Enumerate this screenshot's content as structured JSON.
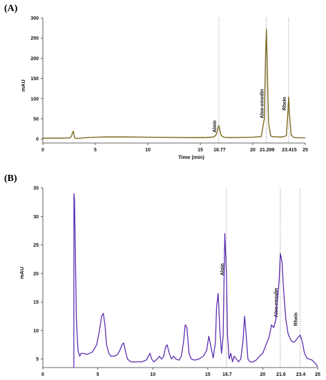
{
  "chart_data": [
    {
      "type": "line",
      "panel_label": "(A)",
      "xlabel": "Time (min)",
      "ylabel": "mAU",
      "xlim": [
        0,
        25
      ],
      "ylim": [
        -10,
        300
      ],
      "x_ticks": [
        0,
        5,
        10,
        15,
        20,
        25
      ],
      "y_ticks": [
        0,
        50,
        100,
        150,
        200,
        250,
        300
      ],
      "line_color": "#7a6a1e",
      "grid": false,
      "series": [
        {
          "x": [
            0,
            2.0,
            2.2,
            2.4,
            2.6,
            2.75,
            2.85,
            2.92,
            2.98,
            3.05,
            3.15,
            3.3,
            3.6,
            4.0,
            5.0,
            6.0,
            8.0,
            10.0,
            12.0,
            14.0,
            15.5,
            16.3,
            16.55,
            16.68,
            16.77,
            16.86,
            17.0,
            17.3,
            18.0,
            19.0,
            20.0,
            20.8,
            21.1,
            21.22,
            21.299,
            21.38,
            21.5,
            21.7,
            21.9,
            22.1,
            22.4,
            22.8,
            23.2,
            23.35,
            23.415,
            23.5,
            23.65,
            23.9,
            24.3,
            25.0
          ],
          "y": [
            2,
            2,
            2.5,
            2.5,
            3,
            8,
            18,
            19,
            9,
            2,
            1,
            1.5,
            2,
            3,
            4.5,
            5,
            5,
            4.5,
            4,
            3.5,
            3.5,
            5,
            12,
            28,
            33,
            22,
            8,
            4,
            3.5,
            4,
            4.5,
            6,
            50,
            210,
            272,
            180,
            40,
            8,
            5,
            6,
            5,
            5,
            8,
            70,
            104,
            60,
            10,
            4,
            3,
            3
          ]
        }
      ],
      "annotations": [
        {
          "label": "Aloin",
          "x": 16.77,
          "rt_label": "16.77"
        },
        {
          "label": "Aloe-emodin",
          "x": 21.299,
          "rt_label": "21.299"
        },
        {
          "label": "Rhein",
          "x": 23.415,
          "rt_label": "23.415"
        }
      ]
    },
    {
      "type": "line",
      "panel_label": "(B)",
      "xlabel": "",
      "ylabel": "mAU",
      "xlim": [
        0,
        25
      ],
      "ylim": [
        3.5,
        35
      ],
      "x_ticks": [
        0,
        5,
        10,
        15,
        20,
        25
      ],
      "y_ticks": [
        5,
        10,
        15,
        20,
        25,
        30,
        35
      ],
      "line_color": "#5b2bb0",
      "grid": false,
      "series": [
        {
          "x": [
            2.82,
            2.83,
            2.88,
            2.95,
            3.05,
            3.2,
            3.35,
            3.5,
            3.7,
            4.0,
            4.5,
            4.9,
            5.15,
            5.35,
            5.5,
            5.65,
            5.8,
            6.0,
            6.2,
            6.5,
            6.8,
            7.0,
            7.2,
            7.35,
            7.5,
            7.7,
            8.0,
            8.5,
            9.0,
            9.4,
            9.6,
            9.75,
            9.9,
            10.1,
            10.4,
            10.6,
            10.8,
            11.0,
            11.15,
            11.3,
            11.5,
            11.7,
            11.9,
            12.1,
            12.4,
            12.6,
            12.8,
            12.95,
            13.1,
            13.3,
            13.5,
            13.8,
            14.2,
            14.6,
            14.9,
            15.1,
            15.3,
            15.5,
            15.7,
            15.8,
            15.95,
            16.1,
            16.25,
            16.4,
            16.55,
            16.7,
            16.8,
            16.95,
            17.1,
            17.25,
            17.4,
            17.6,
            17.8,
            18.0,
            18.2,
            18.35,
            18.5,
            18.65,
            18.85,
            19.1,
            19.4,
            19.7,
            20.0,
            20.3,
            20.6,
            20.8,
            21.0,
            21.2,
            21.35,
            21.5,
            21.6,
            21.75,
            21.9,
            22.1,
            22.3,
            22.5,
            22.7,
            22.9,
            23.1,
            23.3,
            23.4,
            23.6,
            23.8,
            24.0,
            24.2,
            24.5,
            24.8,
            25.0
          ],
          "y": [
            3.5,
            34,
            33,
            25,
            12,
            6.5,
            5.5,
            6,
            6,
            5.8,
            6.2,
            7.5,
            10,
            12.5,
            13,
            11,
            7.5,
            6,
            5.5,
            5.5,
            5.8,
            6.5,
            7.5,
            7.8,
            6.5,
            5,
            4.5,
            4.5,
            4.5,
            4.8,
            5.5,
            6,
            5,
            4.5,
            5,
            5.5,
            5,
            5.5,
            7,
            7.5,
            6,
            5,
            5.5,
            5,
            4.8,
            5.5,
            8,
            11,
            10.5,
            6,
            5,
            4.8,
            5,
            5.5,
            6.5,
            9,
            7,
            5.2,
            8,
            14,
            16.5,
            10,
            6,
            9,
            27,
            20,
            9,
            5,
            6,
            4.5,
            5.5,
            5,
            4.5,
            5,
            8,
            12.5,
            9,
            5,
            4.5,
            4.5,
            4.8,
            5.5,
            6,
            7.5,
            9,
            11,
            10.5,
            12,
            15.5,
            19,
            23.5,
            22,
            17,
            12,
            9.5,
            8.5,
            8,
            8,
            8.5,
            9,
            9.2,
            8,
            6,
            5.2,
            5,
            4.8,
            4.2,
            3.6
          ]
        }
      ],
      "annotations": [
        {
          "label": "Aloin",
          "x": 16.7,
          "rt_label": "16.7"
        },
        {
          "label": "Aloe-emodin",
          "x": 21.6,
          "rt_label": "21.6"
        },
        {
          "label": "Rhein",
          "x": 23.4,
          "rt_label": "23.4"
        }
      ]
    }
  ]
}
